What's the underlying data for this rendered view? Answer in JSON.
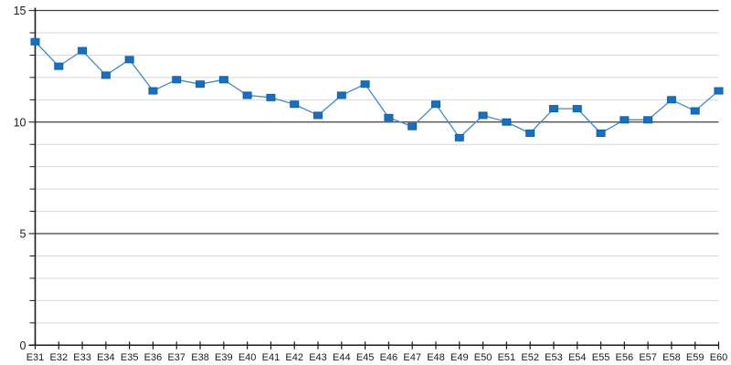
{
  "chart_data": {
    "type": "line",
    "title": "",
    "xlabel": "",
    "ylabel": "",
    "categories": [
      "E31",
      "E32",
      "E33",
      "E34",
      "E35",
      "E36",
      "E37",
      "E38",
      "E39",
      "E40",
      "E41",
      "E42",
      "E43",
      "E44",
      "E45",
      "E46",
      "E47",
      "E48",
      "E49",
      "E50",
      "E51",
      "E52",
      "E53",
      "E54",
      "E55",
      "E56",
      "E57",
      "E58",
      "E59",
      "E60"
    ],
    "values": [
      13.6,
      12.5,
      13.2,
      12.1,
      12.8,
      11.4,
      11.9,
      11.7,
      11.9,
      11.2,
      11.1,
      10.8,
      10.3,
      11.2,
      11.7,
      10.2,
      9.8,
      10.8,
      9.3,
      10.3,
      10.0,
      9.5,
      10.6,
      10.6,
      9.5,
      10.1,
      10.1,
      11.0,
      10.5,
      11.4
    ],
    "ylim": [
      0,
      15
    ],
    "y_major_ticks": [
      0,
      5,
      10,
      15
    ],
    "y_minor_tick_step": 1,
    "grid": "horizontal",
    "legend_position": "none",
    "marker_shape": "square"
  },
  "colors": {
    "marker_fill": "#1470C4",
    "marker_border": "#0F5FAE",
    "series_line": "#4189CE",
    "major_gridline": "#3F3F3F",
    "minor_gridline": "#D8D8D8",
    "axis": "#1A1A1A",
    "tick_label": "#1A1A1A",
    "background": "#FFFFFF"
  }
}
